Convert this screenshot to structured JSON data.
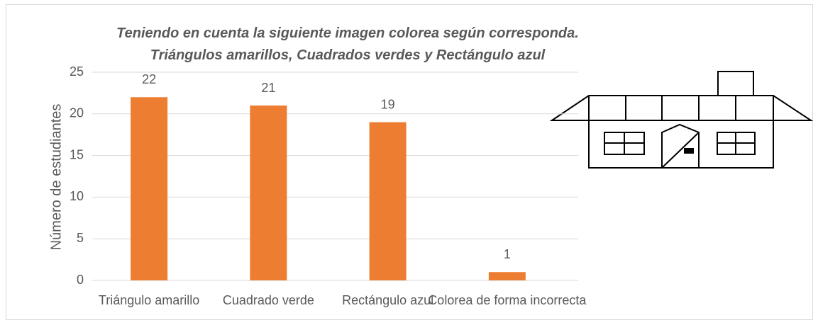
{
  "chart_data": {
    "type": "bar",
    "title": "Teniendo en cuenta la siguiente imagen colorea según corresponda. Triángulos amarillos, Cuadrados verdes y Rectángulo azul",
    "y_label": "Número de estudiantes",
    "categories": [
      "Triángulo amarillo",
      "Cuadrado verde",
      "Rectángulo azul",
      "Colorea de forma incorrecta"
    ],
    "values": [
      22,
      21,
      19,
      1
    ],
    "color": "#ed7d31",
    "ylim": [
      0,
      25
    ],
    "yticks": [
      0,
      5,
      10,
      15,
      20,
      25
    ],
    "grid": true
  }
}
